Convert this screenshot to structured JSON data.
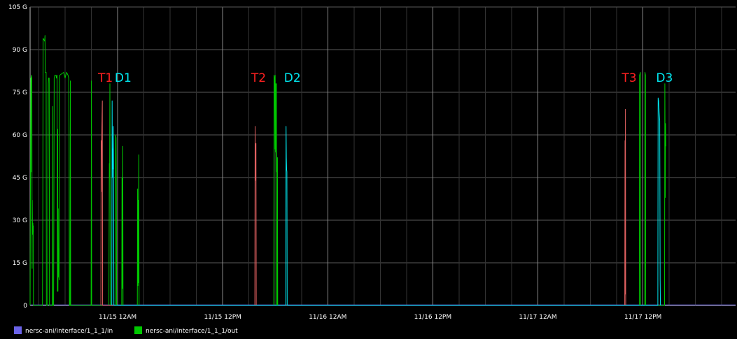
{
  "chart_data": {
    "type": "line",
    "title": "",
    "xlabel": "",
    "ylabel": "",
    "ylim": [
      0,
      105
    ],
    "y_unit": "G",
    "yticks": [
      0,
      15,
      30,
      45,
      60,
      75,
      90,
      105
    ],
    "ytick_labels": [
      "0",
      "15 G",
      "30 G",
      "45 G",
      "60 G",
      "75 G",
      "90 G",
      "105 G"
    ],
    "xlim": [
      "11/14 14:00",
      "11/17 22:35"
    ],
    "xtick_labels": [
      "11/15 12AM",
      "11/15 12PM",
      "11/16 12AM",
      "11/16 12PM",
      "11/17 12AM",
      "11/17 12PM"
    ],
    "grid": true,
    "legend_position": "bottom-left",
    "series": [
      {
        "name": "nersc-ani/interface/1_1_1/in",
        "color": "#6b63e8",
        "points": [
          [
            "11/14 14:00",
            0.2
          ],
          [
            "11/16 13:00",
            0.2
          ],
          [
            "11/17 22:35",
            0.2
          ]
        ]
      },
      {
        "name": "nersc-ani/interface/1_1_1/out",
        "color": "#00c800",
        "points": [
          [
            "11/14 14:00",
            0
          ],
          [
            "11/14 14:05",
            80
          ],
          [
            "11/14 14:06",
            47
          ],
          [
            "11/14 14:07",
            80
          ],
          [
            "11/14 14:09",
            81
          ],
          [
            "11/14 14:12",
            80
          ],
          [
            "11/14 14:14",
            13
          ],
          [
            "11/14 14:15",
            37
          ],
          [
            "11/14 14:17",
            25
          ],
          [
            "11/14 14:19",
            29
          ],
          [
            "11/14 14:20",
            27
          ],
          [
            "11/14 14:22",
            28
          ],
          [
            "11/14 14:23",
            0
          ],
          [
            "11/14 15:25",
            0
          ],
          [
            "11/14 15:27",
            28
          ],
          [
            "11/14 15:29",
            94
          ],
          [
            "11/14 15:40",
            93
          ],
          [
            "11/14 15:42",
            95
          ],
          [
            "11/14 15:44",
            82
          ],
          [
            "11/14 15:50",
            82
          ],
          [
            "11/14 15:52",
            0
          ],
          [
            "11/14 16:00",
            0
          ],
          [
            "11/14 16:04",
            78
          ],
          [
            "11/14 16:06",
            80
          ],
          [
            "11/14 16:11",
            80
          ],
          [
            "11/14 16:13",
            0
          ],
          [
            "11/14 16:33",
            0
          ],
          [
            "11/14 16:35",
            70
          ],
          [
            "11/14 16:36",
            0
          ],
          [
            "11/14 16:41",
            0
          ],
          [
            "11/14 16:45",
            80
          ],
          [
            "11/14 16:50",
            81
          ],
          [
            "11/14 16:58",
            81
          ],
          [
            "11/14 17:00",
            80
          ],
          [
            "11/14 17:05",
            81
          ],
          [
            "11/14 17:07",
            5
          ],
          [
            "11/14 17:09",
            62
          ],
          [
            "11/14 17:11",
            5
          ],
          [
            "11/14 17:13",
            34
          ],
          [
            "11/14 17:15",
            10
          ],
          [
            "11/14 17:17",
            20
          ],
          [
            "11/14 17:19",
            9
          ],
          [
            "11/14 17:21",
            80
          ],
          [
            "11/14 17:23",
            81
          ],
          [
            "11/14 17:50",
            82
          ],
          [
            "11/14 18:00",
            80
          ],
          [
            "11/14 18:10",
            82
          ],
          [
            "11/14 18:20",
            81
          ],
          [
            "11/14 18:25",
            80
          ],
          [
            "11/14 18:27",
            59
          ],
          [
            "11/14 18:29",
            0
          ],
          [
            "11/14 18:34",
            0
          ],
          [
            "11/14 18:36",
            79
          ],
          [
            "11/14 18:38",
            0
          ],
          [
            "11/14 20:58",
            0
          ],
          [
            "11/14 21:00",
            79
          ],
          [
            "11/14 21:02",
            0
          ],
          [
            "11/14 23:00",
            0
          ],
          [
            "11/14 23:03",
            50
          ],
          [
            "11/14 23:05",
            45
          ],
          [
            "11/14 23:07",
            78
          ],
          [
            "11/14 23:10",
            0
          ],
          [
            "11/14 23:44",
            0
          ],
          [
            "11/14 23:46",
            60
          ],
          [
            "11/14 23:49",
            59
          ],
          [
            "11/14 23:51",
            40
          ],
          [
            "11/14 23:53",
            0
          ],
          [
            "11/15 00:28",
            0
          ],
          [
            "11/15 00:30",
            45
          ],
          [
            "11/15 00:33",
            6
          ],
          [
            "11/15 00:35",
            56
          ],
          [
            "11/15 00:37",
            0
          ],
          [
            "11/15 02:15",
            0
          ],
          [
            "11/15 02:17",
            41
          ],
          [
            "11/15 02:19",
            7
          ],
          [
            "11/15 02:21",
            37
          ],
          [
            "11/15 02:23",
            8
          ],
          [
            "11/15 02:25",
            53
          ],
          [
            "11/15 02:27",
            0
          ],
          [
            "11/15 17:50",
            0
          ],
          [
            "11/15 17:52",
            81
          ],
          [
            "11/15 17:56",
            80
          ],
          [
            "11/15 17:58",
            55
          ],
          [
            "11/15 18:00",
            81
          ],
          [
            "11/15 18:02",
            54
          ],
          [
            "11/15 18:04",
            78
          ],
          [
            "11/15 18:06",
            47
          ],
          [
            "11/15 18:08",
            78
          ],
          [
            "11/15 18:10",
            0
          ],
          [
            "11/15 18:13",
            0
          ],
          [
            "11/15 18:15",
            52
          ],
          [
            "11/15 18:17",
            0
          ],
          [
            "11/17 11:35",
            0
          ],
          [
            "11/17 11:37",
            81
          ],
          [
            "11/17 11:42",
            82
          ],
          [
            "11/17 11:44",
            0
          ],
          [
            "11/17 12:12",
            0
          ],
          [
            "11/17 12:14",
            82
          ],
          [
            "11/17 12:17",
            81
          ],
          [
            "11/17 12:19",
            0
          ],
          [
            "11/17 14:28",
            0
          ],
          [
            "11/17 14:30",
            78
          ],
          [
            "11/17 14:33",
            38
          ],
          [
            "11/17 14:35",
            64
          ],
          [
            "11/17 14:37",
            56
          ]
        ]
      },
      {
        "name": "",
        "color": "#e06060",
        "points": [
          [
            "11/14 22:05",
            0
          ],
          [
            "11/14 22:07",
            58
          ],
          [
            "11/14 22:09",
            40
          ],
          [
            "11/14 22:11",
            60
          ],
          [
            "11/14 22:13",
            66
          ],
          [
            "11/14 22:15",
            72
          ],
          [
            "11/14 22:17",
            0
          ],
          [
            "11/15 15:40",
            0
          ],
          [
            "11/15 15:42",
            63
          ],
          [
            "11/15 15:44",
            44
          ],
          [
            "11/15 15:46",
            55
          ],
          [
            "11/15 15:48",
            57
          ],
          [
            "11/15 15:50",
            0
          ],
          [
            "11/17 09:55",
            0
          ],
          [
            "11/17 09:57",
            58
          ],
          [
            "11/17 09:58",
            4
          ],
          [
            "11/17 10:00",
            69
          ],
          [
            "11/17 10:02",
            0
          ]
        ]
      },
      {
        "name": "",
        "color": "#00e8f0",
        "points": [
          [
            "11/14 23:20",
            0
          ],
          [
            "11/14 23:22",
            72
          ],
          [
            "11/14 23:24",
            45
          ],
          [
            "11/14 23:26",
            55
          ],
          [
            "11/14 23:28",
            48
          ],
          [
            "11/14 23:30",
            63
          ],
          [
            "11/14 23:32",
            44
          ],
          [
            "11/14 23:34",
            0
          ],
          [
            "11/15 19:12",
            0
          ],
          [
            "11/15 19:14",
            63
          ],
          [
            "11/15 19:16",
            52
          ],
          [
            "11/15 19:18",
            48
          ],
          [
            "11/15 19:20",
            47
          ],
          [
            "11/15 19:22",
            0
          ],
          [
            "11/17 13:42",
            0
          ],
          [
            "11/17 13:44",
            73
          ],
          [
            "11/17 13:48",
            72
          ],
          [
            "11/17 13:51",
            68
          ],
          [
            "11/17 13:55",
            65
          ],
          [
            "11/17 13:58",
            9
          ],
          [
            "11/17 14:00",
            0
          ]
        ]
      }
    ],
    "annotations": [
      {
        "text": "T1",
        "color": "#ff2020",
        "x": "11/14 21:45",
        "y": 78
      },
      {
        "text": "D1",
        "color": "#00e8f0",
        "x": "11/14 23:40",
        "y": 78
      },
      {
        "text": "T2",
        "color": "#ff2020",
        "x": "11/15 15:15",
        "y": 78
      },
      {
        "text": "D2",
        "color": "#00e8f0",
        "x": "11/15 19:00",
        "y": 78
      },
      {
        "text": "T3",
        "color": "#ff2020",
        "x": "11/17 09:35",
        "y": 78
      },
      {
        "text": "D3",
        "color": "#00e8f0",
        "x": "11/17 13:30",
        "y": 78
      }
    ]
  }
}
